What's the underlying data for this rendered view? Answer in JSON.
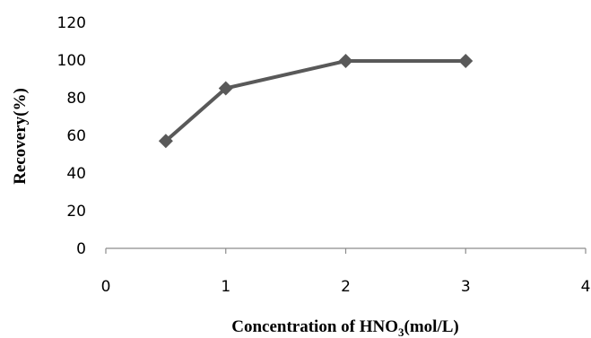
{
  "chart_data": {
    "type": "line",
    "title": "",
    "xlabel": {
      "prefix": "Concentration of HNO",
      "subscript": "3",
      "suffix": "(mol/L)"
    },
    "ylabel": "Recovery(%)",
    "xlim": [
      0,
      4
    ],
    "ylim": [
      0,
      120
    ],
    "xticks": [
      "0",
      "1",
      "2",
      "3",
      "4"
    ],
    "yticks": [
      "0",
      "20",
      "40",
      "60",
      "80",
      "100",
      "120"
    ],
    "grid": false,
    "legend": "none",
    "series": [
      {
        "marker": "diamond",
        "color": "#595959",
        "x": [
          0.5,
          1,
          2,
          3
        ],
        "y": [
          57,
          85,
          99.5,
          99.5
        ]
      }
    ]
  }
}
